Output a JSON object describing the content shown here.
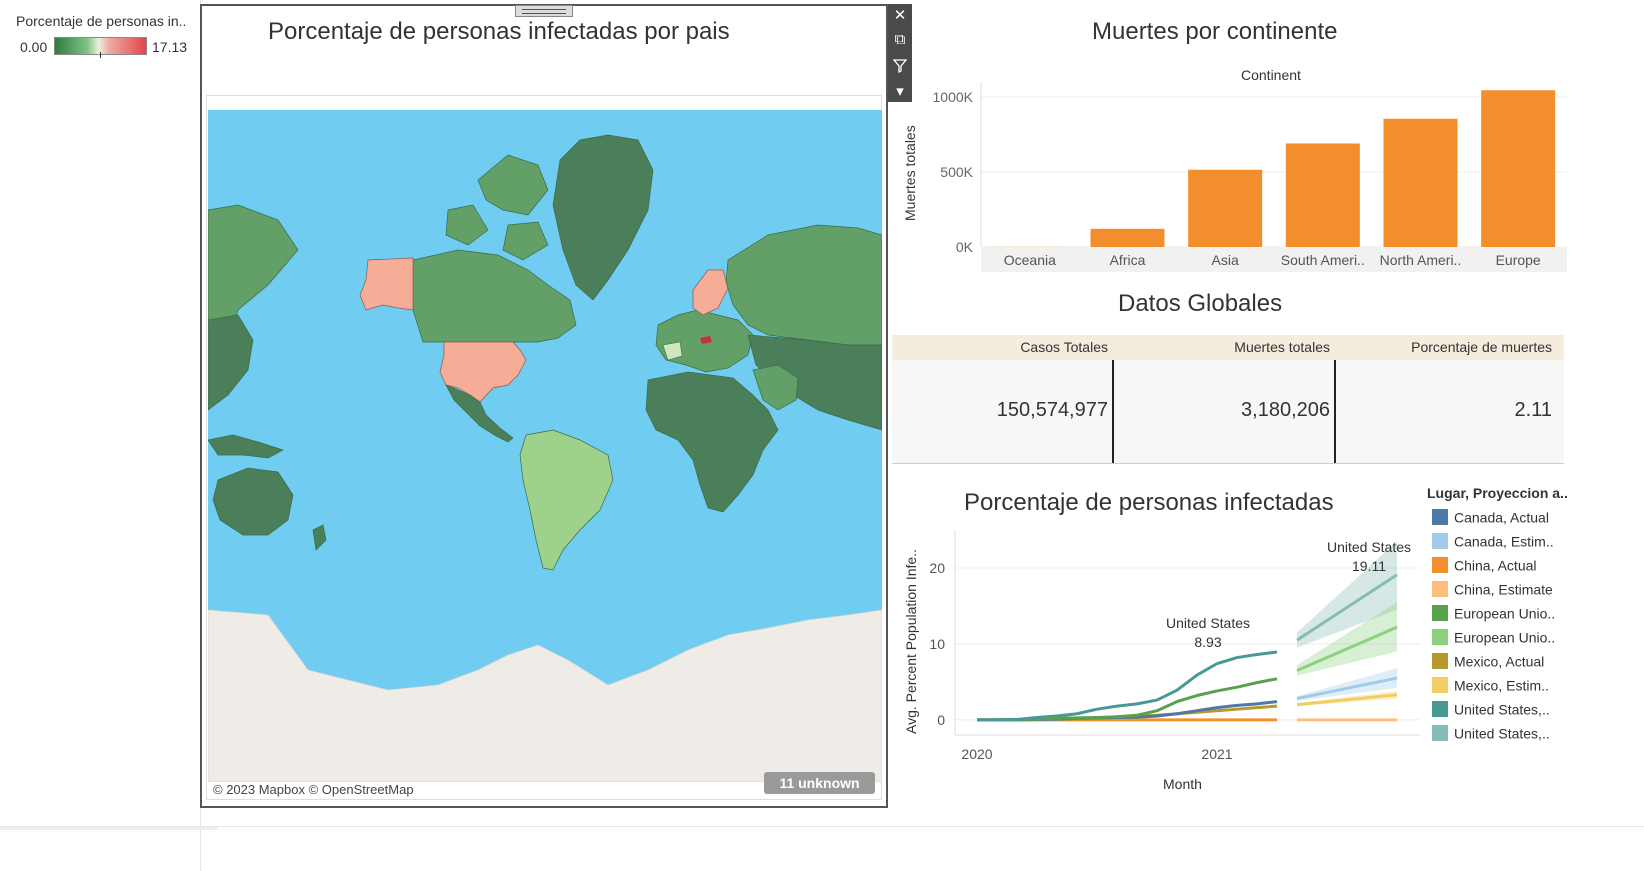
{
  "color_legend": {
    "title": "Porcentaje de personas in..",
    "min": "0.00",
    "max": "17.13",
    "colors": {
      "low": "#2f7c3f",
      "mid": "#e8f0e2",
      "high": "#e2454e"
    }
  },
  "map": {
    "title": "Porcentaje de personas infectadas por pais",
    "attribution": "© 2023 Mapbox © OpenStreetMap",
    "unknown_badge": "11 unknown",
    "colors": {
      "ocean": "#70cdf1",
      "land_dark": "#4a7f59",
      "land_mid": "#62a067",
      "land_light": "#9ed18a",
      "highlight": "#f5ad98",
      "antarctica": "#efece8"
    },
    "toolbar": [
      {
        "icon": "close-icon",
        "glyph": "✕"
      },
      {
        "icon": "external-link-icon",
        "glyph": "⧉"
      },
      {
        "icon": "filter-icon",
        "glyph": "⏷"
      },
      {
        "icon": "dropdown-arrow-icon",
        "glyph": "▾"
      }
    ]
  },
  "bar_chart": {
    "title": "Muertes por continente",
    "header": "Continent",
    "ylabel": "Muertes totales",
    "bar_color": "#f28e2b"
  },
  "global_table": {
    "title": "Datos Globales",
    "headers": [
      "Casos Totales",
      "Muertes totales",
      "Porcentaje de muertes"
    ],
    "values": [
      "150,574,977",
      "3,180,206",
      "2.11"
    ]
  },
  "line_chart": {
    "title": "Porcentaje de personas infectadas",
    "ylabel": "Avg. Percent Population Infe..",
    "xlabel": "Month",
    "legend_title": "Lugar, Proyeccion a..",
    "legend": [
      {
        "label": "Canada, Actual",
        "color": "#4e79a7"
      },
      {
        "label": "Canada, Estim..",
        "color": "#a0cbe8"
      },
      {
        "label": "China, Actual",
        "color": "#f28e2b"
      },
      {
        "label": "China, Estimate",
        "color": "#ffbe7d"
      },
      {
        "label": "European Unio..",
        "color": "#59a14f"
      },
      {
        "label": "European Unio..",
        "color": "#8cd17d"
      },
      {
        "label": "Mexico, Actual",
        "color": "#b6992d"
      },
      {
        "label": "Mexico, Estim..",
        "color": "#f1ce63"
      },
      {
        "label": "United States,..",
        "color": "#499894"
      },
      {
        "label": "United States,..",
        "color": "#86bcb6"
      }
    ],
    "annotations": [
      {
        "name": "United States",
        "value": "8.93"
      },
      {
        "name": "United States",
        "value": "19.11"
      }
    ]
  },
  "chart_data": [
    {
      "type": "bar",
      "title": "Muertes por continente",
      "xlabel": "Continent",
      "ylabel": "Muertes totales",
      "categories": [
        "Oceania",
        "Africa",
        "Asia",
        "South Ameri..",
        "North Ameri..",
        "Europe"
      ],
      "values": [
        1000,
        121000,
        515000,
        690000,
        855000,
        1045000
      ],
      "ylim": [
        0,
        1100000
      ],
      "yticks": [
        {
          "v": 0,
          "label": "0K"
        },
        {
          "v": 500000,
          "label": "500K"
        },
        {
          "v": 1000000,
          "label": "1000K"
        }
      ],
      "grid": true
    },
    {
      "type": "line",
      "title": "Porcentaje de personas infectadas",
      "xlabel": "Month",
      "ylabel": "Avg. Percent Population Infe..",
      "x_ticks": [
        "2020",
        "2021"
      ],
      "ylim": [
        -2,
        25
      ],
      "yticks": [
        0,
        10,
        20
      ],
      "x": [
        "2020-01",
        "2020-02",
        "2020-03",
        "2020-04",
        "2020-05",
        "2020-06",
        "2020-07",
        "2020-08",
        "2020-09",
        "2020-10",
        "2020-11",
        "2020-12",
        "2021-01",
        "2021-02",
        "2021-03",
        "2021-04"
      ],
      "series": [
        {
          "name": "United States, Actual",
          "values": [
            0,
            0,
            0.05,
            0.3,
            0.5,
            0.8,
            1.4,
            1.8,
            2.1,
            2.6,
            3.9,
            5.9,
            7.4,
            8.2,
            8.6,
            8.93
          ]
        },
        {
          "name": "European Union, Actual",
          "values": [
            0,
            0,
            0.02,
            0.1,
            0.2,
            0.25,
            0.3,
            0.4,
            0.6,
            1.2,
            2.4,
            3.2,
            3.8,
            4.3,
            4.9,
            5.4
          ]
        },
        {
          "name": "Canada, Actual",
          "values": [
            0,
            0,
            0,
            0.05,
            0.1,
            0.2,
            0.25,
            0.3,
            0.35,
            0.5,
            0.8,
            1.2,
            1.6,
            1.9,
            2.1,
            2.4
          ]
        },
        {
          "name": "Mexico, Actual",
          "values": [
            0,
            0,
            0,
            0.02,
            0.05,
            0.1,
            0.25,
            0.4,
            0.5,
            0.6,
            0.8,
            1.0,
            1.2,
            1.4,
            1.6,
            1.8
          ]
        },
        {
          "name": "China, Actual",
          "values": [
            0,
            0,
            0,
            0,
            0,
            0,
            0,
            0,
            0,
            0,
            0,
            0,
            0,
            0,
            0,
            0
          ]
        }
      ],
      "forecast": {
        "x": [
          "2021-05",
          "2021-10"
        ],
        "series": [
          {
            "name": "United States, Estimate",
            "values": [
              10.5,
              19.11
            ],
            "band": [
              [
                9.5,
                11.5
              ],
              [
                14.5,
                23.5
              ]
            ]
          },
          {
            "name": "European Union, Estimate",
            "values": [
              6.5,
              12.2
            ],
            "band": [
              [
                5.8,
                7.2
              ],
              [
                9,
                15.5
              ]
            ]
          },
          {
            "name": "Canada, Estimate",
            "values": [
              2.8,
              5.5
            ],
            "band": [
              [
                2.5,
                3.1
              ],
              [
                4.2,
                6.8
              ]
            ]
          },
          {
            "name": "Mexico, Estimate",
            "values": [
              2.0,
              3.3
            ],
            "band": [
              [
                1.8,
                2.2
              ],
              [
                2.8,
                3.8
              ]
            ]
          },
          {
            "name": "China, Estimate",
            "values": [
              0,
              0
            ],
            "band": [
              [
                0,
                0
              ],
              [
                0,
                0
              ]
            ]
          }
        ]
      }
    }
  ]
}
